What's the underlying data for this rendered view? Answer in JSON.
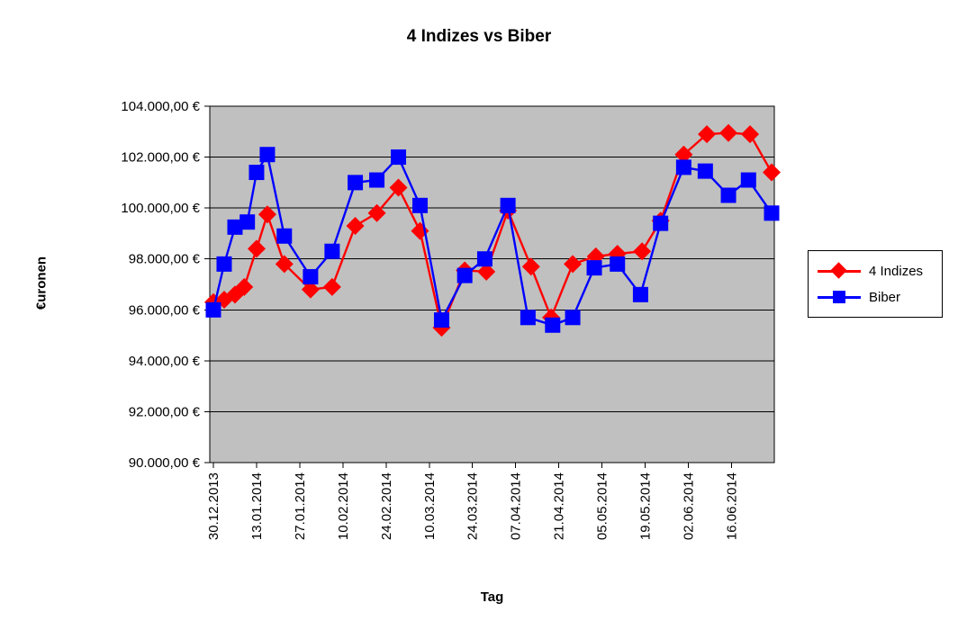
{
  "title": "4 Indizes vs Biber",
  "axes": {
    "y_label": "€uronen",
    "x_label": "Tag"
  },
  "legend": {
    "items": [
      {
        "label": "4 Indizes",
        "color": "#ff0000",
        "marker": "diamond"
      },
      {
        "label": "Biber",
        "color": "#0000ff",
        "marker": "square"
      }
    ]
  },
  "chart_data": {
    "type": "line",
    "title": "4 Indizes vs Biber",
    "xlabel": "Tag",
    "ylabel": "€uronen",
    "y_min": 90000,
    "y_max": 104000,
    "y_step": 2000,
    "grid": true,
    "plot_background": "#c0c0c0",
    "legend_position": "right",
    "y_ticks": [
      {
        "v": 104000,
        "label": "104.000,00 €"
      },
      {
        "v": 102000,
        "label": "102.000,00 €"
      },
      {
        "v": 100000,
        "label": "100.000,00 €"
      },
      {
        "v": 98000,
        "label": "98.000,00 €"
      },
      {
        "v": 96000,
        "label": "96.000,00 €"
      },
      {
        "v": 94000,
        "label": "94.000,00 €"
      },
      {
        "v": 92000,
        "label": "92.000,00 €"
      },
      {
        "v": 90000,
        "label": "90.000,00 €"
      }
    ],
    "x_unit": "days_since_first_point",
    "x_range": [
      0,
      181
    ],
    "x_ticks": [
      {
        "d": 0,
        "label": "30.12.2013"
      },
      {
        "d": 14,
        "label": "13.01.2014"
      },
      {
        "d": 28,
        "label": "27.01.2014"
      },
      {
        "d": 42,
        "label": "10.02.2014"
      },
      {
        "d": 56,
        "label": "24.02.2014"
      },
      {
        "d": 70,
        "label": "10.03.2014"
      },
      {
        "d": 84,
        "label": "24.03.2014"
      },
      {
        "d": 98,
        "label": "07.04.2014"
      },
      {
        "d": 112,
        "label": "21.04.2014"
      },
      {
        "d": 126,
        "label": "05.05.2014"
      },
      {
        "d": 140,
        "label": "19.05.2014"
      },
      {
        "d": 154,
        "label": "02.06.2014"
      },
      {
        "d": 168,
        "label": "16.06.2014"
      }
    ],
    "series": [
      {
        "name": "4 Indizes",
        "color": "#ff0000",
        "marker": "diamond",
        "points": [
          {
            "d": 0,
            "v": 96300
          },
          {
            "d": 3.5,
            "v": 96400
          },
          {
            "d": 7,
            "v": 96600
          },
          {
            "d": 10,
            "v": 96900
          },
          {
            "d": 14,
            "v": 98400
          },
          {
            "d": 17.5,
            "v": 99750
          },
          {
            "d": 23,
            "v": 97800
          },
          {
            "d": 31.5,
            "v": 96800
          },
          {
            "d": 38.5,
            "v": 96900
          },
          {
            "d": 46,
            "v": 99300
          },
          {
            "d": 53,
            "v": 99800
          },
          {
            "d": 60,
            "v": 100800
          },
          {
            "d": 67,
            "v": 99100
          },
          {
            "d": 74,
            "v": 95300
          },
          {
            "d": 81.5,
            "v": 97550
          },
          {
            "d": 88.5,
            "v": 97500
          },
          {
            "d": 95.5,
            "v": 99900
          },
          {
            "d": 103,
            "v": 97700
          },
          {
            "d": 109.5,
            "v": 95700
          },
          {
            "d": 116.5,
            "v": 97800
          },
          {
            "d": 124,
            "v": 98100
          },
          {
            "d": 131,
            "v": 98200
          },
          {
            "d": 139,
            "v": 98300
          },
          {
            "d": 145,
            "v": 99500
          },
          {
            "d": 152.5,
            "v": 102100
          },
          {
            "d": 160,
            "v": 102900
          },
          {
            "d": 167,
            "v": 102950
          },
          {
            "d": 174,
            "v": 102900
          },
          {
            "d": 181,
            "v": 101400
          }
        ]
      },
      {
        "name": "Biber",
        "color": "#0000ff",
        "marker": "square",
        "points": [
          {
            "d": 0,
            "v": 96000
          },
          {
            "d": 3.5,
            "v": 97800
          },
          {
            "d": 7,
            "v": 99250
          },
          {
            "d": 11,
            "v": 99450
          },
          {
            "d": 14,
            "v": 101400
          },
          {
            "d": 17.5,
            "v": 102100
          },
          {
            "d": 23,
            "v": 98900
          },
          {
            "d": 31.5,
            "v": 97300
          },
          {
            "d": 38.5,
            "v": 98300
          },
          {
            "d": 46,
            "v": 101000
          },
          {
            "d": 53,
            "v": 101100
          },
          {
            "d": 60,
            "v": 102000
          },
          {
            "d": 67,
            "v": 100100
          },
          {
            "d": 74,
            "v": 95600
          },
          {
            "d": 81.5,
            "v": 97350
          },
          {
            "d": 88,
            "v": 98000
          },
          {
            "d": 95.5,
            "v": 100100
          },
          {
            "d": 102,
            "v": 95700
          },
          {
            "d": 110,
            "v": 95400
          },
          {
            "d": 116.5,
            "v": 95700
          },
          {
            "d": 123.5,
            "v": 97650
          },
          {
            "d": 131,
            "v": 97800
          },
          {
            "d": 138.5,
            "v": 96600
          },
          {
            "d": 145,
            "v": 99400
          },
          {
            "d": 152.5,
            "v": 101600
          },
          {
            "d": 159.5,
            "v": 101450
          },
          {
            "d": 167,
            "v": 100500
          },
          {
            "d": 173.5,
            "v": 101100
          },
          {
            "d": 181,
            "v": 99800
          }
        ]
      }
    ]
  }
}
